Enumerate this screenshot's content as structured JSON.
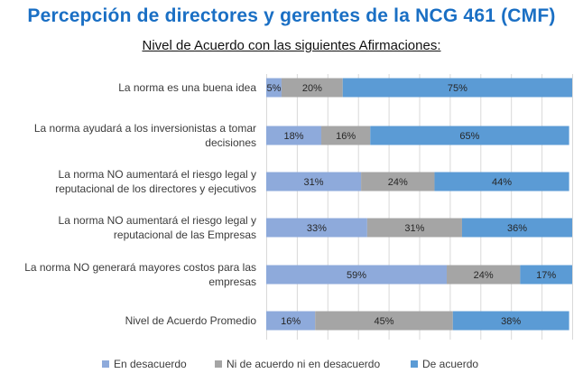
{
  "title": "Percepción de directores y gerentes de la NCG 461 (CMF)",
  "subtitle": "Nivel de Acuerdo con las siguientes Afirmaciones:",
  "colors": {
    "title": "#1a6fc4",
    "s0": "#8eaadb",
    "s1": "#a5a5a5",
    "s2": "#5b9bd5"
  },
  "chart_data": {
    "type": "bar",
    "orientation": "horizontal",
    "stacked": true,
    "percent": true,
    "xlim": [
      0,
      100
    ],
    "grid": true,
    "legend_position": "bottom",
    "categories": [
      [
        "La norma es una buena idea"
      ],
      [
        "La norma ayudará a los inversionistas a tomar",
        "decisiones"
      ],
      [
        "La norma NO aumentará el riesgo legal y",
        "reputacional de los directores y ejecutivos"
      ],
      [
        "La norma NO aumentará el riesgo legal y",
        "reputacional de las Empresas"
      ],
      [
        "La norma NO generará mayores costos para las",
        "empresas"
      ],
      [
        "Nivel de Acuerdo Promedio"
      ]
    ],
    "series": [
      {
        "name": "En desacuerdo",
        "values": [
          5,
          18,
          31,
          33,
          59,
          16
        ],
        "labels": [
          "5%",
          "18%",
          "31%",
          "33%",
          "59%",
          "16%"
        ]
      },
      {
        "name": "Ni de acuerdo ni en desacuerdo",
        "values": [
          20,
          16,
          24,
          31,
          24,
          45
        ],
        "labels": [
          "20%",
          "16%",
          "24%",
          "31%",
          "24%",
          "45%"
        ]
      },
      {
        "name": "De acuerdo",
        "values": [
          75,
          65,
          44,
          36,
          17,
          38
        ],
        "labels": [
          "75%",
          "65%",
          "44%",
          "36%",
          "17%",
          "38%"
        ]
      }
    ]
  }
}
